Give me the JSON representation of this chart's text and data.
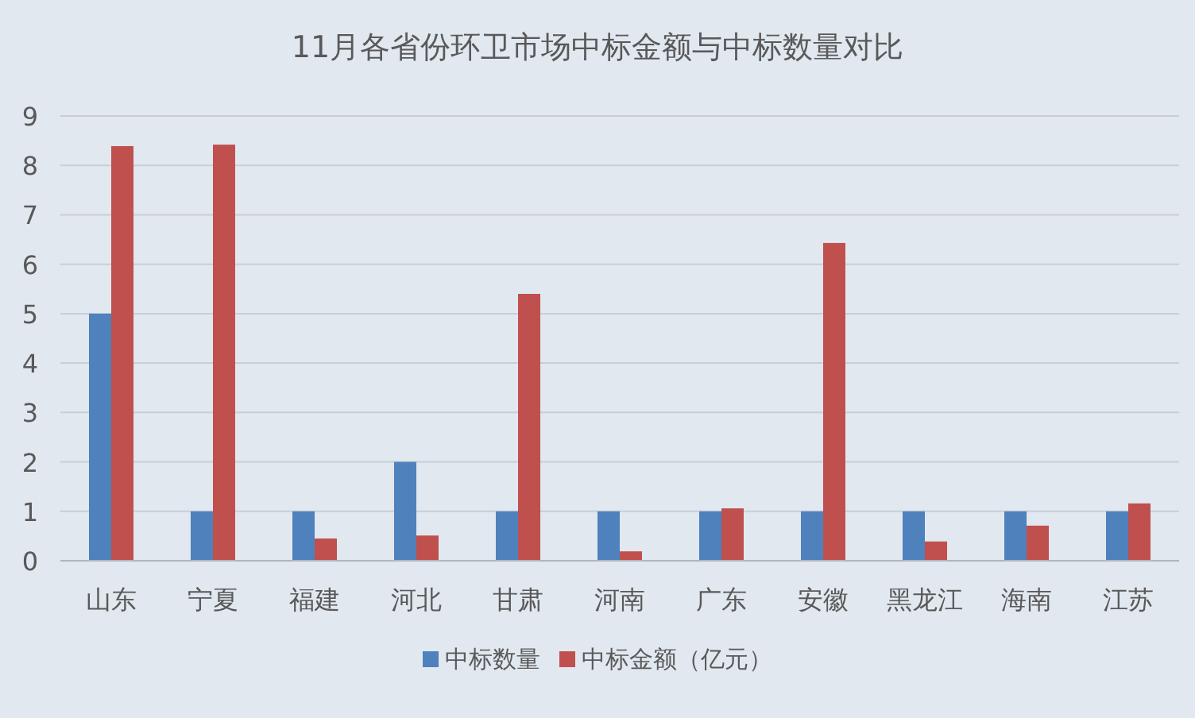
{
  "chart_data": {
    "type": "bar",
    "title": "11月各省份环卫市场中标金额与中标数量对比",
    "categories": [
      "山东",
      "宁夏",
      "福建",
      "河北",
      "甘肃",
      "河南",
      "广东",
      "安徽",
      "黑龙江",
      "海南",
      "江苏"
    ],
    "series": [
      {
        "name": "中标数量",
        "color": "#4f81bd",
        "values": [
          5,
          1,
          1,
          2,
          1,
          1,
          1,
          1,
          1,
          1,
          1
        ]
      },
      {
        "name": "中标金额（亿元）",
        "color": "#c0504d",
        "values": [
          8.39,
          8.42,
          0.45,
          0.51,
          5.4,
          0.19,
          1.06,
          6.43,
          0.39,
          0.71,
          1.16
        ]
      }
    ],
    "ylim": [
      0,
      9
    ],
    "yticks": [
      0,
      1,
      2,
      3,
      4,
      5,
      6,
      7,
      8,
      9
    ],
    "grid": "y",
    "legend": "bottom"
  }
}
